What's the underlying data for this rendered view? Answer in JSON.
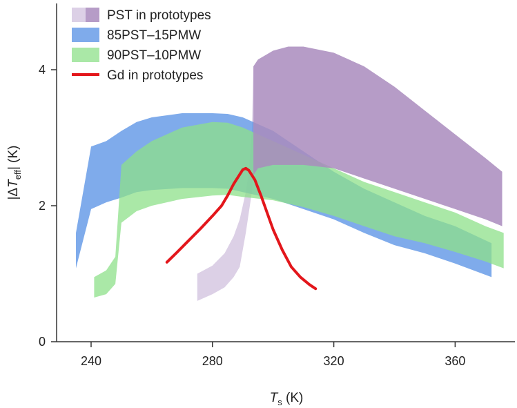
{
  "chart_data": {
    "type": "area",
    "title": "",
    "xlabel": {
      "main": "T",
      "sub": "s",
      "unit": " (K)"
    },
    "ylabel": {
      "pre": "|Δ",
      "main": "T",
      "sub": "eff",
      "post": "| (K)"
    },
    "xlim": [
      228,
      378
    ],
    "ylim": [
      0,
      5
    ],
    "xticks": [
      240,
      280,
      320,
      360
    ],
    "yticks": [
      0,
      2,
      4
    ],
    "grid": false,
    "legend_position": "top-left",
    "series": [
      {
        "name": "PST in prototypes",
        "kind": "band",
        "color": "#a98bbd",
        "opacity": 0.85,
        "x": [
          293.5,
          295,
          300,
          305,
          310,
          320,
          330,
          340,
          350,
          360,
          370,
          375.5
        ],
        "upper": [
          4.05,
          4.15,
          4.28,
          4.34,
          4.34,
          4.25,
          4.05,
          3.75,
          3.4,
          3.05,
          2.7,
          2.5
        ],
        "lower": [
          2.45,
          2.55,
          2.6,
          2.6,
          2.6,
          2.55,
          2.4,
          2.25,
          2.1,
          1.95,
          1.8,
          1.7
        ],
        "pre_phase": {
          "color": "#dcd0e6",
          "opacity": 1,
          "x": [
            275,
            280,
            284,
            287,
            289,
            290,
            291,
            292,
            293,
            293.5
          ],
          "upper": [
            1.0,
            1.12,
            1.3,
            1.55,
            1.8,
            2.0,
            2.2,
            2.5,
            3.1,
            4.05
          ],
          "lower": [
            0.6,
            0.7,
            0.8,
            0.95,
            1.1,
            1.35,
            1.6,
            1.9,
            2.2,
            2.45
          ]
        }
      },
      {
        "name": "85PST–15PMW",
        "kind": "band",
        "color": "#5b93e6",
        "opacity": 0.78,
        "x": [
          235,
          240,
          245,
          250,
          255,
          260,
          270,
          280,
          285,
          290,
          300,
          310,
          320,
          330,
          340,
          350,
          360,
          372
        ],
        "upper": [
          1.6,
          2.87,
          2.95,
          3.1,
          3.23,
          3.3,
          3.36,
          3.36,
          3.35,
          3.3,
          3.1,
          2.8,
          2.5,
          2.25,
          2.05,
          1.85,
          1.7,
          1.45
        ],
        "lower": [
          1.08,
          1.95,
          2.05,
          2.12,
          2.2,
          2.23,
          2.26,
          2.26,
          2.25,
          2.2,
          2.1,
          1.95,
          1.8,
          1.6,
          1.42,
          1.3,
          1.15,
          0.95
        ]
      },
      {
        "name": "90PST–10PMW",
        "kind": "band",
        "color": "#8ee08a",
        "opacity": 0.75,
        "x": [
          241,
          245,
          248,
          250,
          255,
          260,
          270,
          280,
          285,
          290,
          300,
          310,
          320,
          330,
          340,
          350,
          360,
          370,
          376
        ],
        "upper": [
          0.95,
          1.05,
          1.25,
          2.6,
          2.8,
          2.95,
          3.15,
          3.23,
          3.22,
          3.15,
          2.95,
          2.75,
          2.55,
          2.35,
          2.2,
          2.05,
          1.9,
          1.7,
          1.6
        ],
        "lower": [
          0.65,
          0.7,
          0.85,
          1.75,
          1.92,
          2.0,
          2.1,
          2.15,
          2.16,
          2.13,
          2.08,
          1.98,
          1.85,
          1.7,
          1.55,
          1.45,
          1.32,
          1.18,
          1.08
        ]
      },
      {
        "name": "Gd in prototypes",
        "kind": "line",
        "color": "#e3161b",
        "x": [
          265,
          268,
          272,
          276,
          280,
          283,
          285,
          287,
          289,
          290,
          291,
          292,
          294,
          296,
          298,
          300,
          303,
          306,
          309,
          312,
          314
        ],
        "y": [
          1.17,
          1.3,
          1.48,
          1.66,
          1.85,
          2.0,
          2.15,
          2.32,
          2.46,
          2.53,
          2.55,
          2.52,
          2.38,
          2.15,
          1.9,
          1.65,
          1.35,
          1.1,
          0.95,
          0.84,
          0.78
        ]
      }
    ]
  }
}
